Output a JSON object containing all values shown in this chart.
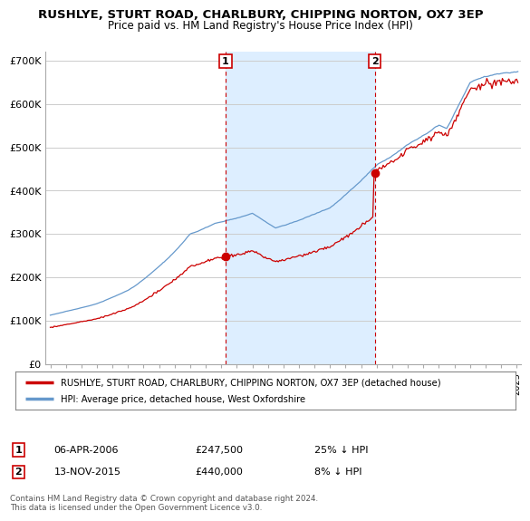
{
  "title": "RUSHLYE, STURT ROAD, CHARLBURY, CHIPPING NORTON, OX7 3EP",
  "subtitle": "Price paid vs. HM Land Registry's House Price Index (HPI)",
  "legend_label_red": "RUSHLYE, STURT ROAD, CHARLBURY, CHIPPING NORTON, OX7 3EP (detached house)",
  "legend_label_blue": "HPI: Average price, detached house, West Oxfordshire",
  "sale1_date": "06-APR-2006",
  "sale1_price": "£247,500",
  "sale1_hpi": "25% ↓ HPI",
  "sale1_year": 2006.27,
  "sale1_value": 247500,
  "sale2_date": "13-NOV-2015",
  "sale2_price": "£440,000",
  "sale2_hpi": "8% ↓ HPI",
  "sale2_year": 2015.87,
  "sale2_value": 440000,
  "footer": "Contains HM Land Registry data © Crown copyright and database right 2024.\nThis data is licensed under the Open Government Licence v3.0.",
  "ylim": [
    0,
    720000
  ],
  "yticks": [
    0,
    100000,
    200000,
    300000,
    400000,
    500000,
    600000,
    700000
  ],
  "ytick_labels": [
    "£0",
    "£100K",
    "£200K",
    "£300K",
    "£400K",
    "£500K",
    "£600K",
    "£700K"
  ],
  "red_color": "#cc0000",
  "blue_color": "#6699cc",
  "shade_color": "#ddeeff",
  "vline_color": "#cc0000",
  "grid_color": "#cccccc",
  "background_color": "#ffffff"
}
